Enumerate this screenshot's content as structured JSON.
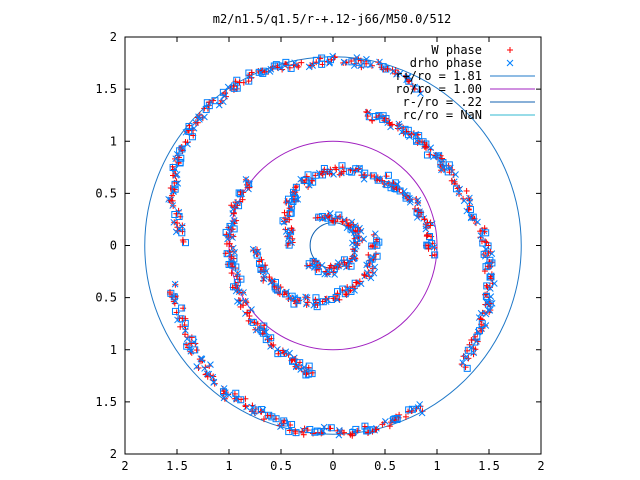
{
  "chart_data": {
    "type": "scatter",
    "title": "m2/n1.5/q1.5/r-+.12-j66/M50.0/512",
    "xlabel": "",
    "ylabel": "",
    "xlim": [
      -2,
      2
    ],
    "ylim": [
      -2,
      2
    ],
    "x_tick_values": [
      -2,
      -1.5,
      -1,
      -0.5,
      0,
      0.5,
      1,
      1.5,
      2
    ],
    "x_tick_labels": [
      "2",
      "1.5",
      "1",
      "0.5",
      "0",
      "0.5",
      "1",
      "1.5",
      "2"
    ],
    "y_tick_values": [
      2,
      1.5,
      1,
      0.5,
      0,
      -0.5,
      -1,
      -1.5,
      -2
    ],
    "y_tick_labels": [
      "2",
      "1.5",
      "1",
      "0.5",
      "0",
      "0.5",
      "1",
      "1.5",
      "2"
    ],
    "grid": false,
    "legend_position": "top-right",
    "series": [
      {
        "name": "W phase",
        "marker": "plus",
        "color": "#ff0000"
      },
      {
        "name": "drho phase",
        "marker": "cross",
        "color": "#0080ff"
      },
      {
        "name": "r+/ro = 1.81",
        "marker": "line",
        "color": "#1f78c8",
        "radius": 1.81
      },
      {
        "name": "ro/ro = 1.00",
        "marker": "line",
        "color": "#a020c0",
        "radius": 1.0
      },
      {
        "name": "r-/ro = .22",
        "marker": "line",
        "color": "#1060b0",
        "radius": 0.22
      },
      {
        "name": "rc/ro = NaN",
        "marker": "line",
        "color": "#30b8d0",
        "radius": null
      }
    ],
    "spiral_arms": [
      {
        "arm": "outer-upper",
        "points": [
          [
            -1.45,
            0.05
          ],
          [
            -1.55,
            0.45
          ],
          [
            -1.5,
            0.8
          ],
          [
            -1.35,
            1.15
          ],
          [
            -1.05,
            1.45
          ],
          [
            -0.7,
            1.65
          ],
          [
            -0.3,
            1.75
          ],
          [
            0.1,
            1.78
          ],
          [
            0.5,
            1.72
          ],
          [
            0.85,
            1.5
          ]
        ]
      },
      {
        "arm": "outer-right",
        "points": [
          [
            0.3,
            1.25
          ],
          [
            0.6,
            1.15
          ],
          [
            0.85,
            1.0
          ],
          [
            1.05,
            0.8
          ],
          [
            1.25,
            0.5
          ],
          [
            1.45,
            0.1
          ],
          [
            1.5,
            -0.2
          ],
          [
            1.5,
            -0.55
          ],
          [
            1.4,
            -0.85
          ],
          [
            1.25,
            -1.15
          ]
        ]
      },
      {
        "arm": "outer-lower",
        "points": [
          [
            0.85,
            -1.55
          ],
          [
            0.5,
            -1.72
          ],
          [
            0.1,
            -1.8
          ],
          [
            -0.3,
            -1.78
          ],
          [
            -0.7,
            -1.62
          ],
          [
            -1.05,
            -1.4
          ],
          [
            -1.3,
            -1.1
          ],
          [
            -1.45,
            -0.75
          ],
          [
            -1.55,
            -0.35
          ]
        ]
      },
      {
        "arm": "middle-left",
        "points": [
          [
            -0.8,
            0.6
          ],
          [
            -0.95,
            0.35
          ],
          [
            -1.0,
            0.0
          ],
          [
            -0.95,
            -0.3
          ],
          [
            -0.85,
            -0.6
          ],
          [
            -0.65,
            -0.85
          ],
          [
            -0.4,
            -1.1
          ],
          [
            -0.2,
            -1.25
          ]
        ]
      },
      {
        "arm": "inner-upper",
        "points": [
          [
            -0.4,
            0.0
          ],
          [
            -0.45,
            0.3
          ],
          [
            -0.35,
            0.55
          ],
          [
            -0.1,
            0.7
          ],
          [
            0.2,
            0.72
          ],
          [
            0.5,
            0.62
          ],
          [
            0.75,
            0.45
          ],
          [
            0.9,
            0.2
          ],
          [
            0.95,
            -0.1
          ]
        ]
      },
      {
        "arm": "inner-lower",
        "points": [
          [
            0.4,
            0.1
          ],
          [
            0.35,
            -0.25
          ],
          [
            0.15,
            -0.45
          ],
          [
            -0.15,
            -0.55
          ],
          [
            -0.45,
            -0.5
          ],
          [
            -0.65,
            -0.3
          ],
          [
            -0.75,
            0.0
          ]
        ]
      },
      {
        "arm": "core",
        "points": [
          [
            -0.15,
            0.25
          ],
          [
            0.1,
            0.28
          ],
          [
            0.25,
            0.1
          ],
          [
            0.2,
            -0.15
          ],
          [
            -0.05,
            -0.25
          ],
          [
            -0.25,
            -0.15
          ]
        ]
      }
    ]
  }
}
